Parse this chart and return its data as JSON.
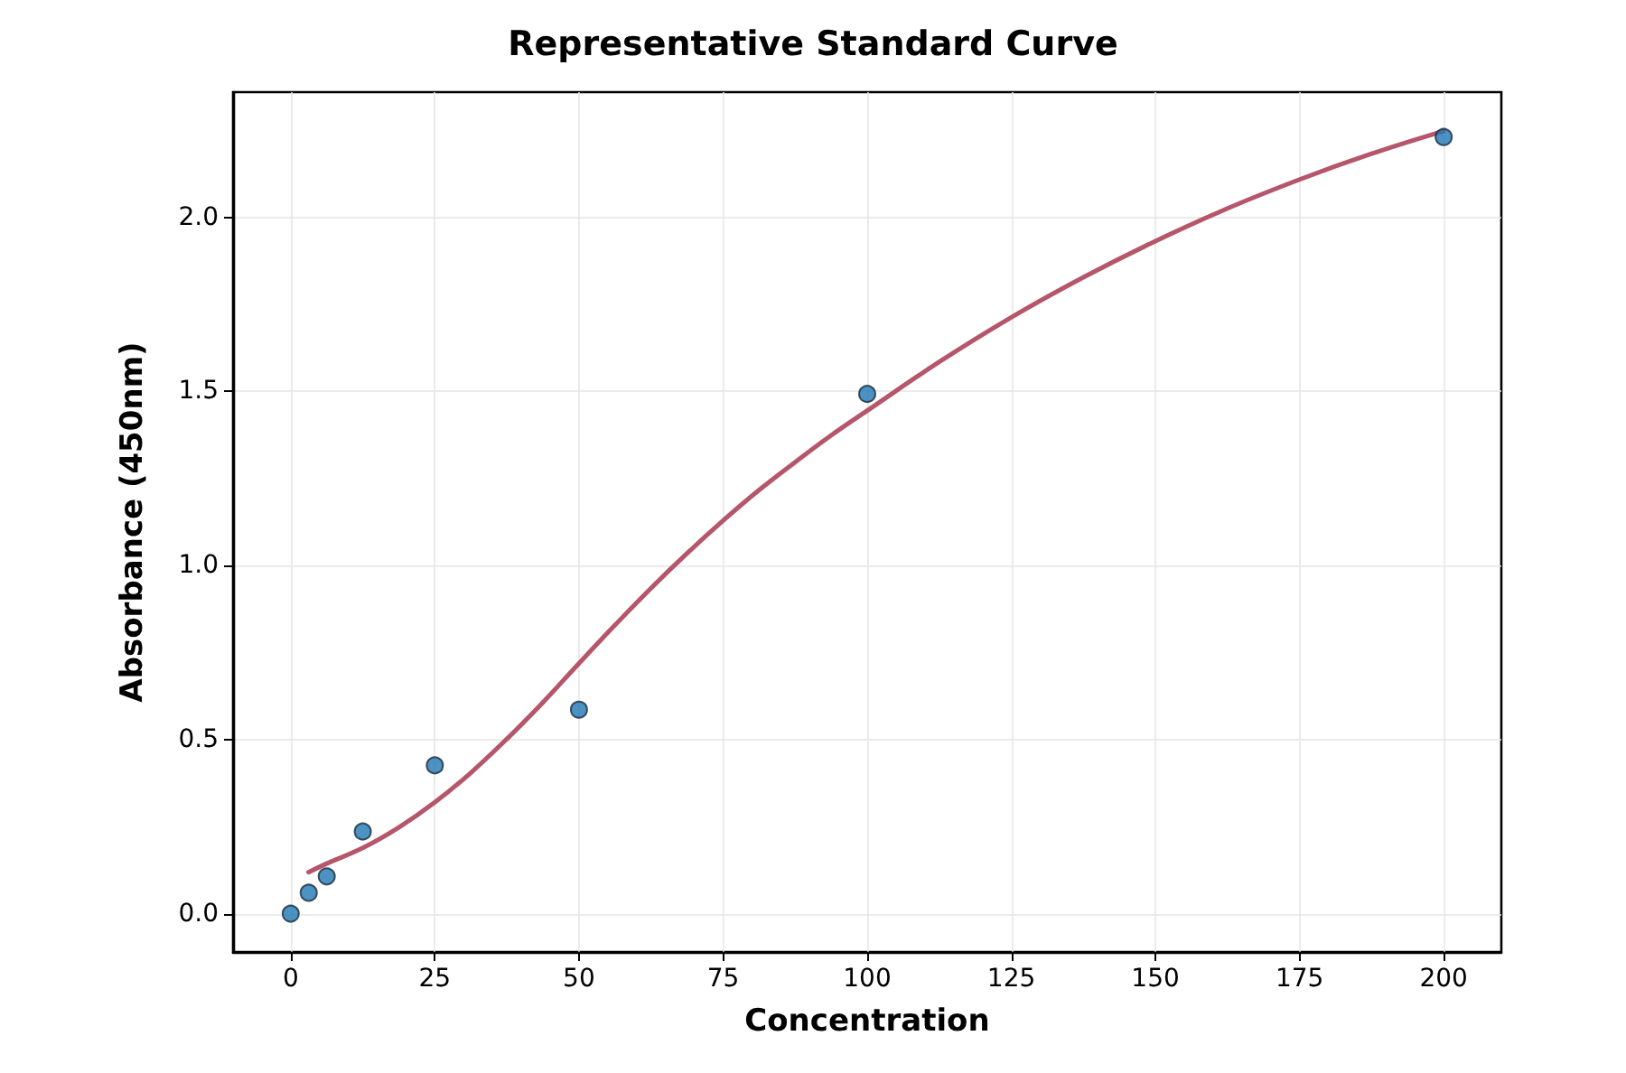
{
  "chart_data": {
    "type": "scatter",
    "title": "Representative Standard Curve",
    "xlabel": "Concentration",
    "ylabel": "Absorbance (450nm)",
    "series": [
      {
        "color": "#1f77b4",
        "x": [
          0,
          3.125,
          6.25,
          12.5,
          25,
          50,
          100,
          200
        ],
        "values": [
          0.0,
          0.06,
          0.107,
          0.236,
          0.426,
          0.586,
          1.493,
          2.231
        ]
      },
      {
        "type": "line",
        "color": "#b5566b",
        "marker": "none",
        "line_style": "solid",
        "x": [
          3.1,
          6.25,
          12.5,
          18.75,
          25,
          31.25,
          37.5,
          43.75,
          50,
          56.25,
          62.5,
          68.75,
          75,
          81.25,
          87.5,
          93.75,
          100,
          112.5,
          125,
          137.5,
          150,
          162.5,
          175,
          187.5,
          200
        ],
        "values": [
          0.119,
          0.144,
          0.189,
          0.248,
          0.32,
          0.405,
          0.502,
          0.607,
          0.719,
          0.829,
          0.935,
          1.035,
          1.129,
          1.217,
          1.297,
          1.374,
          1.445,
          1.585,
          1.713,
          1.828,
          1.932,
          2.026,
          2.109,
          2.183,
          2.248
        ]
      }
    ],
    "xlim": [
      -10,
      210
    ],
    "xticks": [
      0,
      25,
      50,
      75,
      100,
      125,
      150,
      175,
      200
    ],
    "ylim": [
      -0.11,
      2.36
    ],
    "yticks": [
      {
        "value": 0,
        "label": "0.0"
      },
      {
        "value": 0.5,
        "label": "0.5"
      },
      {
        "value": 1,
        "label": "1.0"
      },
      {
        "value": 1.5,
        "label": "1.5"
      },
      {
        "value": 2,
        "label": "2.0"
      }
    ],
    "grid": true,
    "marker": "circle"
  }
}
